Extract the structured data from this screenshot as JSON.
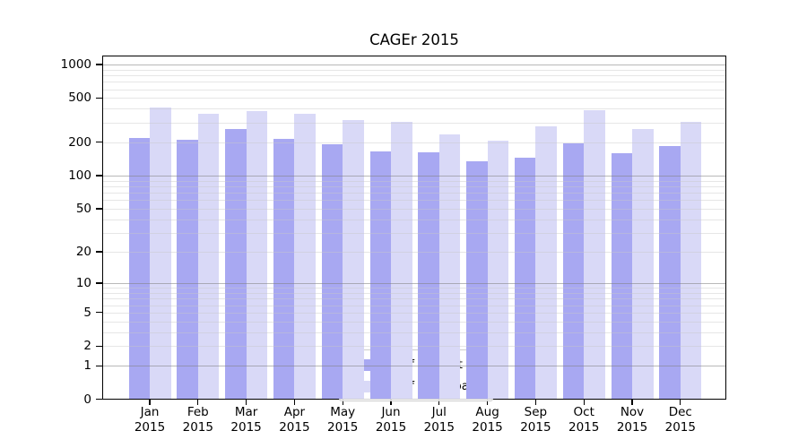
{
  "chart_data": {
    "type": "bar",
    "title": "CAGEr 2015",
    "x_months": [
      "Jan",
      "Feb",
      "Mar",
      "Apr",
      "May",
      "Jun",
      "Jul",
      "Aug",
      "Sep",
      "Oct",
      "Nov",
      "Dec"
    ],
    "x_year": "2015",
    "series": [
      {
        "name": "Nb of distinct IPs",
        "color": "#a8a8f2",
        "values": [
          220,
          210,
          264,
          216,
          193,
          166,
          161,
          135,
          144,
          195,
          160,
          184
        ]
      },
      {
        "name": "Nb of downloads",
        "color": "#d9d9f7",
        "values": [
          410,
          363,
          382,
          362,
          315,
          308,
          236,
          206,
          279,
          390,
          263,
          305
        ]
      }
    ],
    "y_axis": {
      "scale": "log1p",
      "ticks": [
        0,
        1,
        2,
        5,
        10,
        20,
        50,
        100,
        200,
        500,
        1000
      ],
      "major_gridlines": [
        1,
        10,
        100,
        1000
      ],
      "ylim": [
        0,
        1200
      ]
    },
    "legend_position": "lower center",
    "grid": true
  }
}
